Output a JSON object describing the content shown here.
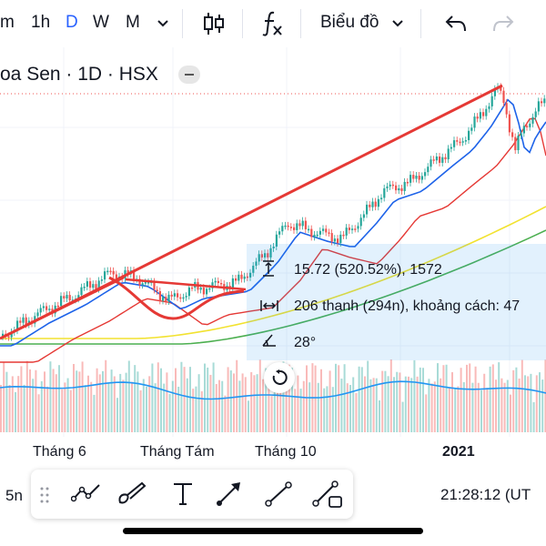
{
  "toolbar": {
    "intervals": [
      "m",
      "1h",
      "D",
      "W",
      "M"
    ],
    "active_interval": "D",
    "chart_type_label": "Biểu đồ"
  },
  "legend": {
    "title": "oa Sen · 1D · HSX"
  },
  "measure": {
    "price": "15.72 (520.52%), 1572",
    "bars": "206 thanh (294n), khoảng cách: 47",
    "angle": "28°"
  },
  "xaxis": {
    "labels": [
      "Tháng 6",
      "Tháng Tám",
      "Tháng 10",
      "2021"
    ]
  },
  "bottom": {
    "range_label": "5n",
    "time": "21:28:12 (UT"
  },
  "icons": {
    "undo": "undo-icon",
    "redo": "redo-icon",
    "indicators": "fx-icon",
    "candles": "candlestick-icon"
  },
  "colors": {
    "accent": "#2962ff",
    "up": "#26a69a",
    "down": "#ef5350",
    "trendline": "#e53935",
    "ma_blue": "#1e63e9",
    "ma_red": "#e53935",
    "ma_yellow": "#f2e230",
    "ma_green": "#4caf50"
  }
}
